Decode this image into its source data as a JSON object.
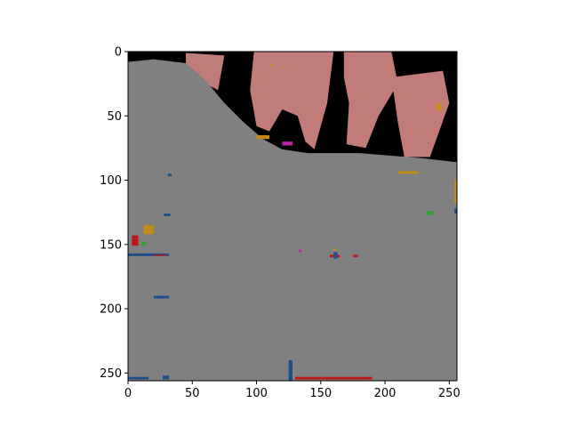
{
  "chart_data": {
    "type": "heatmap",
    "subtype": "segmentation-mask-image",
    "title": "",
    "xlabel": "",
    "ylabel": "",
    "xlim": [
      0,
      256
    ],
    "ylim": [
      256,
      0
    ],
    "y_axis_inverted": true,
    "x_ticks": [
      0,
      50,
      100,
      150,
      200,
      250
    ],
    "y_ticks": [
      0,
      50,
      100,
      150,
      200,
      250
    ],
    "grid": false,
    "legend": "none",
    "class_colors": {
      "ground": "#808080",
      "background": "#000000",
      "upper_region": "#c17c79",
      "orange": "#c48a1a",
      "magenta": "#c020b0",
      "blue": "#1e4e8c",
      "red": "#c01818",
      "green": "#30a030"
    },
    "boundary_polyline": [
      [
        0,
        8
      ],
      [
        20,
        6
      ],
      [
        45,
        9
      ],
      [
        60,
        22
      ],
      [
        75,
        40
      ],
      [
        90,
        55
      ],
      [
        105,
        68
      ],
      [
        120,
        76
      ],
      [
        140,
        79
      ],
      [
        180,
        79
      ],
      [
        230,
        83
      ],
      [
        256,
        86
      ]
    ],
    "upper_region_shapes": [
      [
        [
          45,
          1
        ],
        [
          75,
          3
        ],
        [
          70,
          30
        ],
        [
          55,
          22
        ],
        [
          45,
          10
        ]
      ],
      [
        [
          98,
          0
        ],
        [
          160,
          0
        ],
        [
          155,
          40
        ],
        [
          145,
          76
        ],
        [
          138,
          70
        ],
        [
          132,
          50
        ],
        [
          120,
          45
        ],
        [
          110,
          62
        ],
        [
          100,
          58
        ],
        [
          95,
          30
        ]
      ],
      [
        [
          168,
          0
        ],
        [
          205,
          0
        ],
        [
          210,
          25
        ],
        [
          195,
          50
        ],
        [
          185,
          75
        ],
        [
          170,
          72
        ],
        [
          172,
          40
        ],
        [
          168,
          20
        ]
      ],
      [
        [
          205,
          20
        ],
        [
          245,
          15
        ],
        [
          250,
          40
        ],
        [
          235,
          82
        ],
        [
          215,
          82
        ],
        [
          210,
          55
        ]
      ]
    ],
    "speckles": [
      {
        "class": "blue",
        "x": 31,
        "y": 95,
        "w": 3,
        "h": 2
      },
      {
        "class": "blue",
        "x": 28,
        "y": 126,
        "w": 5,
        "h": 2
      },
      {
        "class": "red",
        "x": 3,
        "y": 143,
        "w": 5,
        "h": 8
      },
      {
        "class": "orange",
        "x": 12,
        "y": 135,
        "w": 8,
        "h": 7
      },
      {
        "class": "green",
        "x": 10,
        "y": 148,
        "w": 4,
        "h": 3
      },
      {
        "class": "blue",
        "x": 0,
        "y": 157,
        "w": 32,
        "h": 2
      },
      {
        "class": "red",
        "x": 20,
        "y": 158,
        "w": 10,
        "h": 1
      },
      {
        "class": "blue",
        "x": 20,
        "y": 190,
        "w": 12,
        "h": 2
      },
      {
        "class": "orange",
        "x": 210,
        "y": 93,
        "w": 16,
        "h": 2
      },
      {
        "class": "green",
        "x": 232,
        "y": 124,
        "w": 6,
        "h": 3
      },
      {
        "class": "blue",
        "x": 254,
        "y": 122,
        "w": 2,
        "h": 4
      },
      {
        "class": "orange",
        "x": 254,
        "y": 100,
        "w": 2,
        "h": 18
      },
      {
        "class": "red",
        "x": 157,
        "y": 158,
        "w": 8,
        "h": 2
      },
      {
        "class": "blue",
        "x": 160,
        "y": 156,
        "w": 3,
        "h": 5
      },
      {
        "class": "red",
        "x": 175,
        "y": 158,
        "w": 4,
        "h": 2
      },
      {
        "class": "magenta",
        "x": 133,
        "y": 154,
        "w": 2,
        "h": 2
      },
      {
        "class": "orange",
        "x": 160,
        "y": 153,
        "w": 2,
        "h": 2
      },
      {
        "class": "blue",
        "x": 125,
        "y": 240,
        "w": 3,
        "h": 16
      },
      {
        "class": "red",
        "x": 130,
        "y": 253,
        "w": 60,
        "h": 2
      },
      {
        "class": "blue",
        "x": 0,
        "y": 253,
        "w": 16,
        "h": 2
      },
      {
        "class": "blue",
        "x": 27,
        "y": 252,
        "w": 5,
        "h": 3
      },
      {
        "class": "magenta",
        "x": 120,
        "y": 70,
        "w": 8,
        "h": 3
      },
      {
        "class": "orange",
        "x": 100,
        "y": 65,
        "w": 10,
        "h": 3
      },
      {
        "class": "orange",
        "x": 110,
        "y": 9,
        "w": 2,
        "h": 2
      },
      {
        "class": "orange",
        "x": 240,
        "y": 40,
        "w": 4,
        "h": 6
      }
    ]
  }
}
